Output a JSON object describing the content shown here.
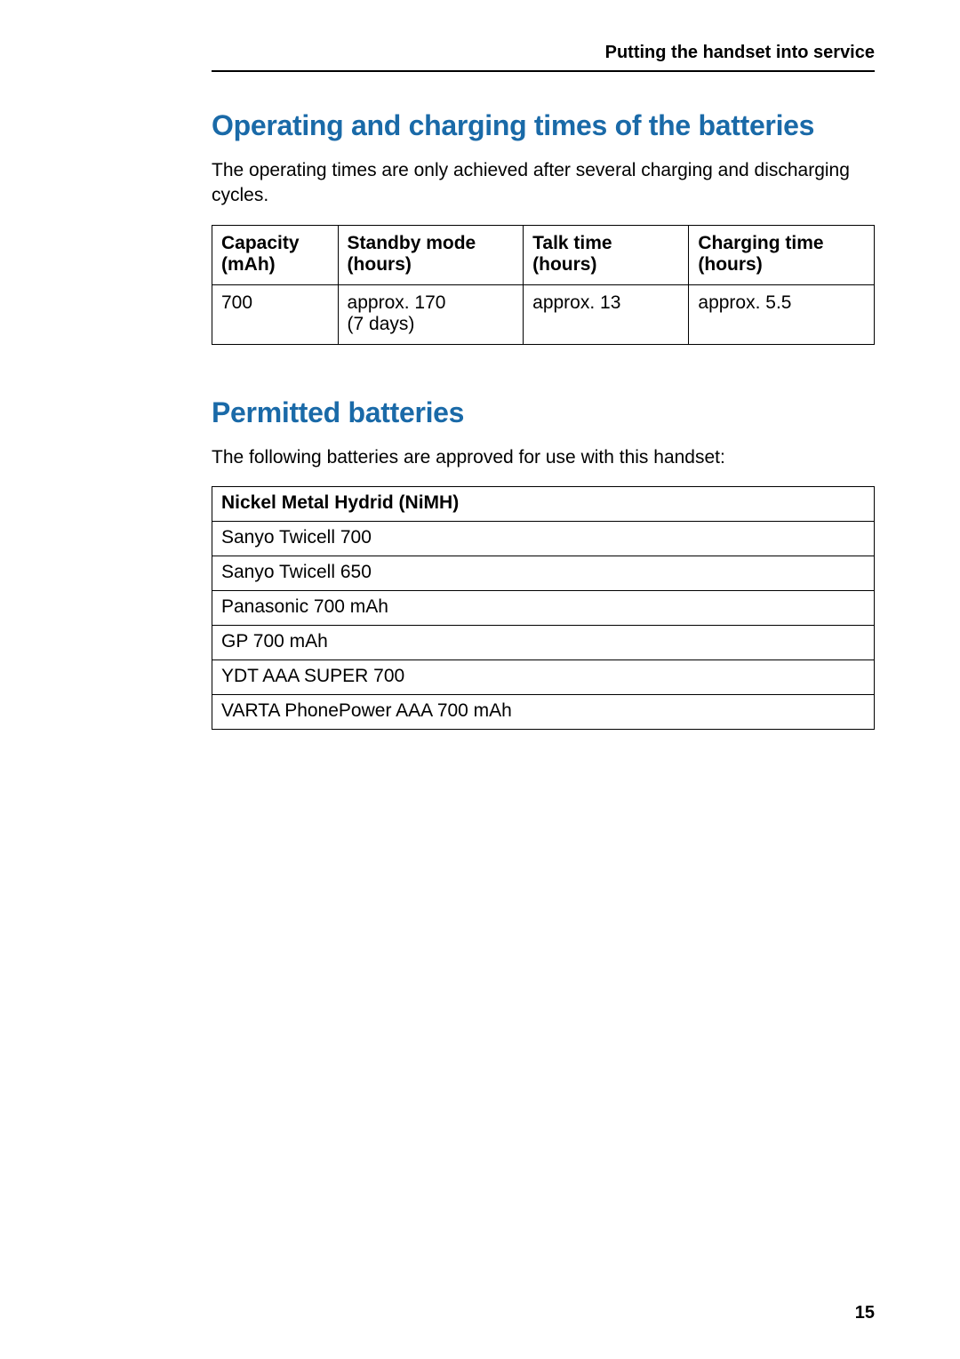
{
  "header": {
    "chapter": "Putting the handset into service"
  },
  "section1": {
    "heading": "Operating and charging times of the batteries",
    "intro": "The operating times are only achieved after several charging and discharging cycles.",
    "table": {
      "columns": [
        {
          "line1": "Capacity",
          "line2": "(mAh)"
        },
        {
          "line1": "Standby mode",
          "line2": "(hours)"
        },
        {
          "line1": "Talk time",
          "line2": "(hours)"
        },
        {
          "line1": "Charging time",
          "line2": "(hours)"
        }
      ],
      "row": {
        "capacity": "700",
        "standby_line1": "approx. 170",
        "standby_line2": "(7 days)",
        "talk": "approx. 13",
        "charge": "approx. 5.5"
      }
    }
  },
  "section2": {
    "heading": "Permitted batteries",
    "intro": "The following batteries are approved for use with this handset:",
    "table": {
      "header": "Nickel Metal Hydrid (NiMH)",
      "rows": [
        "Sanyo Twicell 700",
        "Sanyo Twicell 650",
        "Panasonic 700 mAh",
        "GP 700 mAh",
        "YDT AAA SUPER 700",
        "VARTA PhonePower AAA 700 mAh"
      ]
    }
  },
  "page_number": "15",
  "colors": {
    "heading_color": "#1a6aa8",
    "text_color": "#000000",
    "border_color": "#000000",
    "background": "#ffffff"
  },
  "typography": {
    "heading_fontsize_pt": 24,
    "body_fontsize_pt": 16,
    "header_fontsize_pt": 15,
    "pagenum_fontsize_pt": 15
  }
}
